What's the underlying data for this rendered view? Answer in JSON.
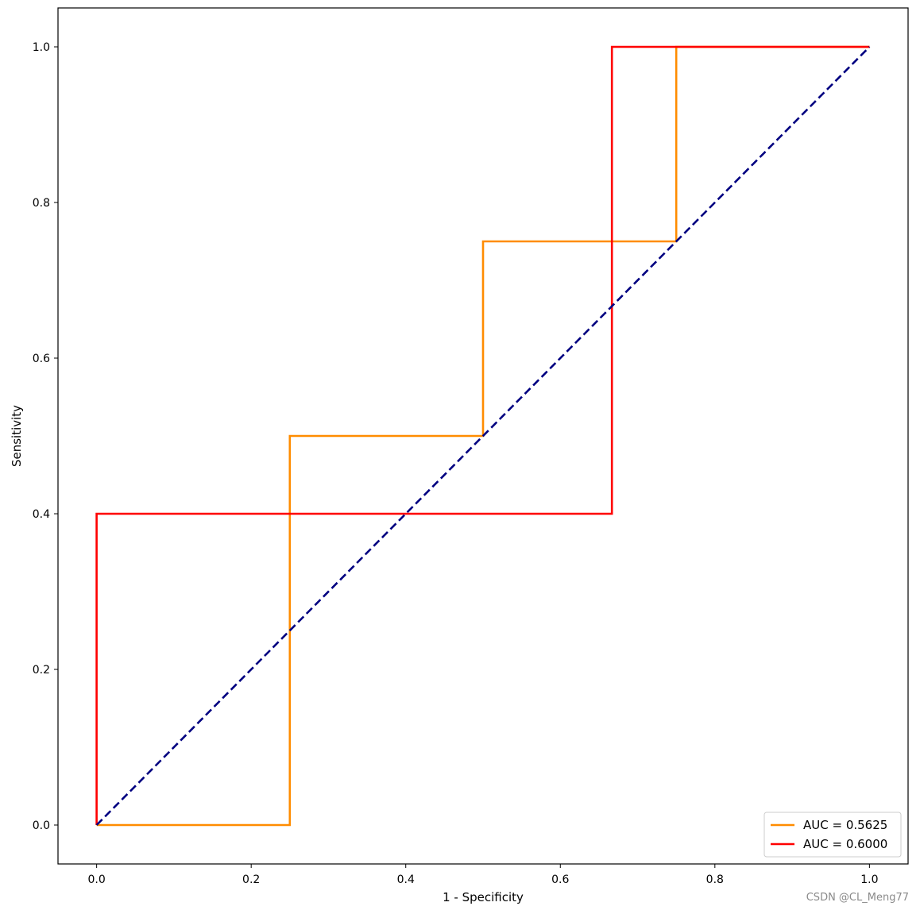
{
  "chart_data": {
    "type": "line",
    "title": "",
    "xlabel": "1 - Specificity",
    "ylabel": "Sensitivity",
    "xlim": [
      -0.05,
      1.05
    ],
    "ylim": [
      -0.05,
      1.05
    ],
    "xticks": [
      0.0,
      0.2,
      0.4,
      0.6,
      0.8,
      1.0
    ],
    "yticks": [
      0.0,
      0.2,
      0.4,
      0.6,
      0.8,
      1.0
    ],
    "xtick_labels": [
      "0.0",
      "0.2",
      "0.4",
      "0.6",
      "0.8",
      "1.0"
    ],
    "ytick_labels": [
      "0.0",
      "0.2",
      "0.4",
      "0.6",
      "0.8",
      "1.0"
    ],
    "grid": false,
    "legend_position": "lower right",
    "series": [
      {
        "name": "AUC = 0.5625",
        "color": "#ff8c00",
        "style": "solid",
        "x": [
          0.0,
          0.25,
          0.25,
          0.5,
          0.5,
          0.75,
          0.75,
          1.0
        ],
        "y": [
          0.0,
          0.0,
          0.5,
          0.5,
          0.75,
          0.75,
          1.0,
          1.0
        ]
      },
      {
        "name": "AUC = 0.6000",
        "color": "#ff0000",
        "style": "solid",
        "x": [
          0.0,
          0.0,
          0.6667,
          0.6667,
          1.0
        ],
        "y": [
          0.0,
          0.4,
          0.4,
          1.0,
          1.0
        ]
      },
      {
        "name": "",
        "color": "#000080",
        "style": "dashed",
        "x": [
          0.0,
          1.0
        ],
        "y": [
          0.0,
          1.0
        ]
      }
    ]
  },
  "watermark": "CSDN @CL_Meng77"
}
